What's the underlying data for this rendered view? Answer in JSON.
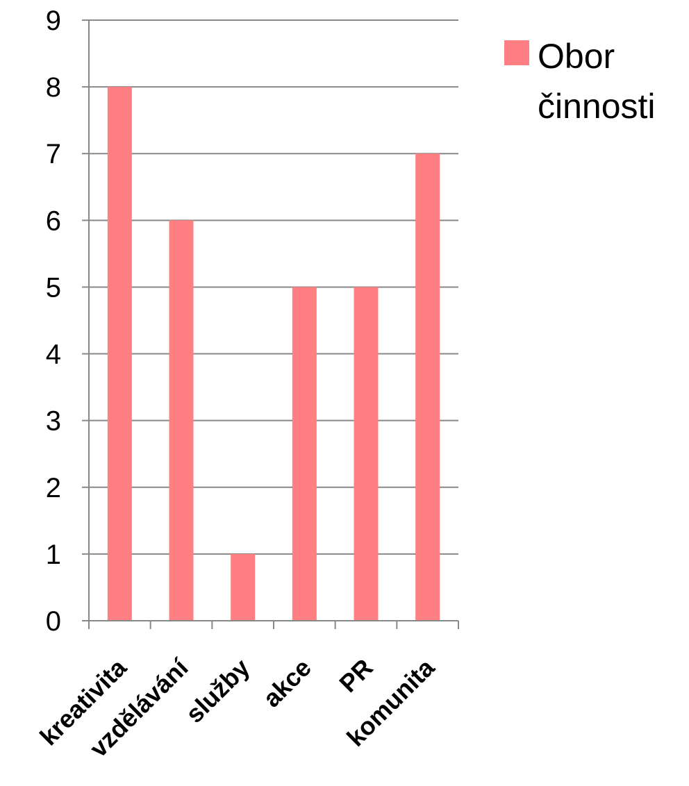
{
  "chart_data": {
    "type": "bar",
    "categories": [
      "kreativita",
      "vzdělávání",
      "služby",
      "akce",
      "PR",
      "komunita"
    ],
    "series": [
      {
        "name": "Obor činnosti",
        "values": [
          8,
          6,
          1,
          5,
          5,
          7
        ]
      }
    ],
    "ylim": [
      0,
      9
    ],
    "yticks": [
      0,
      1,
      2,
      3,
      4,
      5,
      6,
      7,
      8,
      9
    ],
    "grid": true,
    "legend": {
      "position": "right",
      "lines": [
        "Obor",
        "činnosti"
      ]
    },
    "colors": {
      "bar": "#ff7f82",
      "grid": "#888888",
      "axis": "#888888"
    },
    "title": "",
    "xlabel": "",
    "ylabel": ""
  }
}
